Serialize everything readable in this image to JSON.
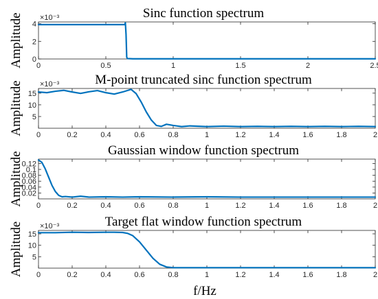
{
  "figure": {
    "xlabel": "f/Hz",
    "line_color": "#0072BD"
  },
  "chart_data": [
    {
      "type": "line",
      "title": "Sinc function spectrum",
      "xlabel": "",
      "ylabel": "Amplitude",
      "exponent_label": "×10⁻³",
      "xlim": [
        0,
        2.5
      ],
      "ylim": [
        0,
        0.0042
      ],
      "xticks": [
        0,
        0.5,
        1,
        1.5,
        2,
        2.5
      ],
      "xtick_labels": [
        "0",
        "0.5",
        "1",
        "1.5",
        "2",
        "2.5"
      ],
      "yticks": [
        0,
        0.002,
        0.004
      ],
      "ytick_labels": [
        "0",
        "2",
        "4"
      ],
      "grid": false,
      "series": [
        {
          "x": [
            0,
            0.05,
            0.1,
            0.2,
            0.3,
            0.4,
            0.5,
            0.6,
            0.64,
            0.645,
            0.65,
            0.655,
            0.66,
            0.7,
            1.0,
            1.5,
            2.0,
            2.5
          ],
          "y": [
            0.0039,
            0.0039,
            0.0039,
            0.0039,
            0.0039,
            0.0039,
            0.0039,
            0.0039,
            0.0039,
            0.0041,
            0.0028,
            0.0002,
            5e-05,
            2e-05,
            2e-05,
            2e-05,
            2e-05,
            2e-05
          ]
        }
      ]
    },
    {
      "type": "line",
      "title": "M-point truncated sinc function spectrum",
      "xlabel": "",
      "ylabel": "Amplitude",
      "exponent_label": "×10⁻³",
      "xlim": [
        0,
        2
      ],
      "ylim": [
        0,
        0.017
      ],
      "xticks": [
        0,
        0.2,
        0.4,
        0.6,
        0.8,
        1,
        1.2,
        1.4,
        1.6,
        1.8,
        2
      ],
      "xtick_labels": [
        "0",
        "0.2",
        "0.4",
        "0.6",
        "0.8",
        "1",
        "1.2",
        "1.4",
        "1.6",
        "1.8",
        "2"
      ],
      "yticks": [
        0.005,
        0.01,
        0.015
      ],
      "ytick_labels": [
        "5",
        "10",
        "15"
      ],
      "grid": false,
      "series": [
        {
          "x": [
            0,
            0.05,
            0.1,
            0.15,
            0.2,
            0.25,
            0.3,
            0.35,
            0.4,
            0.45,
            0.5,
            0.55,
            0.58,
            0.61,
            0.64,
            0.67,
            0.7,
            0.73,
            0.76,
            0.8,
            0.85,
            0.9,
            1.0,
            1.1,
            1.2,
            1.3,
            1.4,
            1.5,
            1.6,
            1.7,
            1.8,
            1.9,
            2.0
          ],
          "y": [
            0.0155,
            0.0152,
            0.0158,
            0.0162,
            0.0155,
            0.0149,
            0.0156,
            0.0161,
            0.0152,
            0.0146,
            0.0155,
            0.0166,
            0.0148,
            0.0112,
            0.007,
            0.0035,
            0.0012,
            0.0008,
            0.0017,
            0.0012,
            0.0007,
            0.001,
            0.0007,
            0.0009,
            0.0007,
            0.0008,
            0.0007,
            0.0008,
            0.0007,
            0.0008,
            0.0007,
            0.0008,
            0.0007
          ]
        }
      ]
    },
    {
      "type": "line",
      "title": "Gaussian window function spectrum",
      "xlabel": "",
      "ylabel": "Amplitude",
      "exponent_label": "",
      "xlim": [
        0,
        2
      ],
      "ylim": [
        0,
        0.135
      ],
      "xticks": [
        0,
        0.2,
        0.4,
        0.6,
        0.8,
        1,
        1.2,
        1.4,
        1.6,
        1.8,
        2
      ],
      "xtick_labels": [
        "0",
        "0.2",
        "0.4",
        "0.6",
        "0.8",
        "1",
        "1.2",
        "1.4",
        "1.6",
        "1.8",
        "2"
      ],
      "yticks": [
        0.02,
        0.04,
        0.06,
        0.08,
        0.1,
        0.12
      ],
      "ytick_labels": [
        "0.02",
        "0.04",
        "0.06",
        "0.08",
        "0.1",
        "0.12"
      ],
      "grid": false,
      "series": [
        {
          "x": [
            0,
            0.02,
            0.04,
            0.06,
            0.08,
            0.1,
            0.12,
            0.14,
            0.16,
            0.2,
            0.25,
            0.3,
            0.4,
            0.5,
            0.6,
            0.8,
            1.0,
            1.2,
            1.4,
            1.6,
            1.8,
            2.0
          ],
          "y": [
            0.132,
            0.124,
            0.102,
            0.074,
            0.046,
            0.025,
            0.012,
            0.007,
            0.008,
            0.006,
            0.009,
            0.006,
            0.007,
            0.006,
            0.007,
            0.006,
            0.007,
            0.006,
            0.006,
            0.006,
            0.006,
            0.006
          ]
        }
      ]
    },
    {
      "type": "line",
      "title": "Target flat window function spectrum",
      "xlabel": "f/Hz",
      "ylabel": "Amplitude",
      "exponent_label": "×10⁻³",
      "xlim": [
        0,
        2
      ],
      "ylim": [
        0,
        0.0165
      ],
      "xticks": [
        0,
        0.2,
        0.4,
        0.6,
        0.8,
        1,
        1.2,
        1.4,
        1.6,
        1.8,
        2
      ],
      "xtick_labels": [
        "0",
        "0.2",
        "0.4",
        "0.6",
        "0.8",
        "1",
        "1.2",
        "1.4",
        "1.6",
        "1.8",
        "2"
      ],
      "yticks": [
        0.005,
        0.01,
        0.015
      ],
      "ytick_labels": [
        "5",
        "10",
        "15"
      ],
      "grid": false,
      "series": [
        {
          "x": [
            0,
            0.1,
            0.2,
            0.3,
            0.4,
            0.45,
            0.5,
            0.53,
            0.56,
            0.6,
            0.64,
            0.68,
            0.72,
            0.76,
            0.8,
            0.85,
            1.0,
            1.2,
            1.4,
            1.6,
            1.8,
            2.0
          ],
          "y": [
            0.0155,
            0.0155,
            0.0157,
            0.0156,
            0.0157,
            0.0157,
            0.0156,
            0.0152,
            0.0142,
            0.0115,
            0.0079,
            0.0043,
            0.0017,
            0.0005,
            0.0002,
            0.0002,
            0.0002,
            0.0002,
            0.0002,
            0.0002,
            0.0002,
            0.0002
          ]
        }
      ]
    }
  ]
}
